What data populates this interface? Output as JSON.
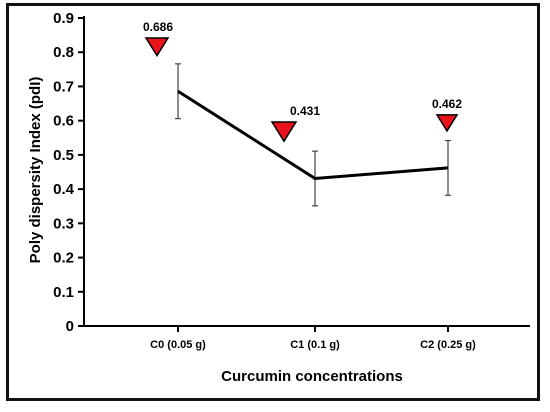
{
  "chart_data": {
    "type": "line",
    "categories": [
      "C0 (0.05 g)",
      "C1 (0.1 g)",
      "C2 (0.25 g)"
    ],
    "series": [
      {
        "values": [
          0.686,
          0.431,
          0.462
        ],
        "error": [
          0.08,
          0.08,
          0.08
        ],
        "data_labels": [
          "0.686",
          "0.431",
          "0.462"
        ]
      }
    ],
    "xlabel": "Curcumin concentrations",
    "ylabel": "Poly dispersity Index (pdI)",
    "ylim": [
      0,
      0.9
    ],
    "yticks": [
      "0",
      "0.1",
      "0.2",
      "0.3",
      "0.4",
      "0.5",
      "0.6",
      "0.7",
      "0.8",
      "0.9"
    ],
    "grid": false,
    "marker_color": "#e8131b",
    "line_color": "#000000"
  }
}
